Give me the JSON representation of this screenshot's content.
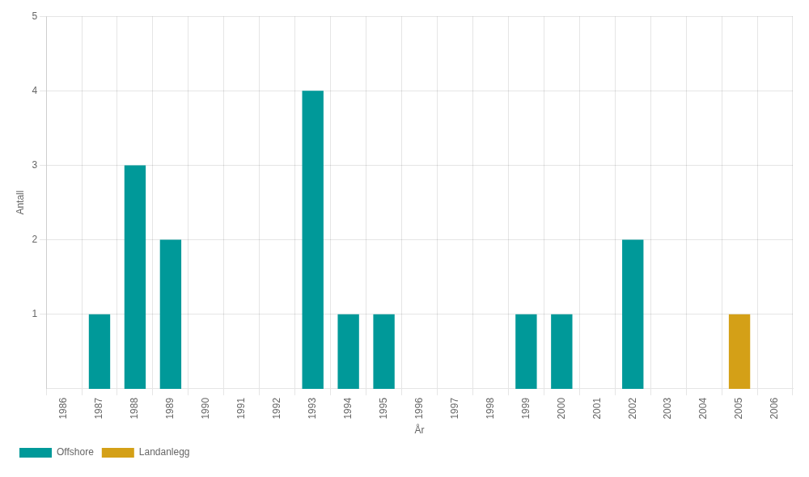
{
  "chart_data": {
    "type": "bar",
    "x_label": "År",
    "y_label": "Antall",
    "categories": [
      "1986",
      "1987",
      "1988",
      "1989",
      "1990",
      "1991",
      "1992",
      "1993",
      "1994",
      "1995",
      "1996",
      "1997",
      "1998",
      "1999",
      "2000",
      "2001",
      "2002",
      "2003",
      "2004",
      "2005",
      "2006"
    ],
    "series": [
      {
        "name": "Offshore",
        "color": "#009999",
        "values": [
          0,
          1,
          3,
          2,
          0,
          0,
          0,
          4,
          1,
          1,
          0,
          0,
          0,
          1,
          1,
          0,
          2,
          0,
          0,
          0,
          0
        ]
      },
      {
        "name": "Landanlegg",
        "color": "#D4A017",
        "values": [
          0,
          0,
          0,
          0,
          0,
          0,
          0,
          0,
          0,
          0,
          0,
          0,
          0,
          0,
          0,
          0,
          0,
          0,
          0,
          1,
          0
        ]
      }
    ],
    "ylim": [
      0,
      5
    ],
    "yticks": [
      1,
      2,
      3,
      4,
      5
    ],
    "grid": true,
    "legend": "bottom"
  }
}
